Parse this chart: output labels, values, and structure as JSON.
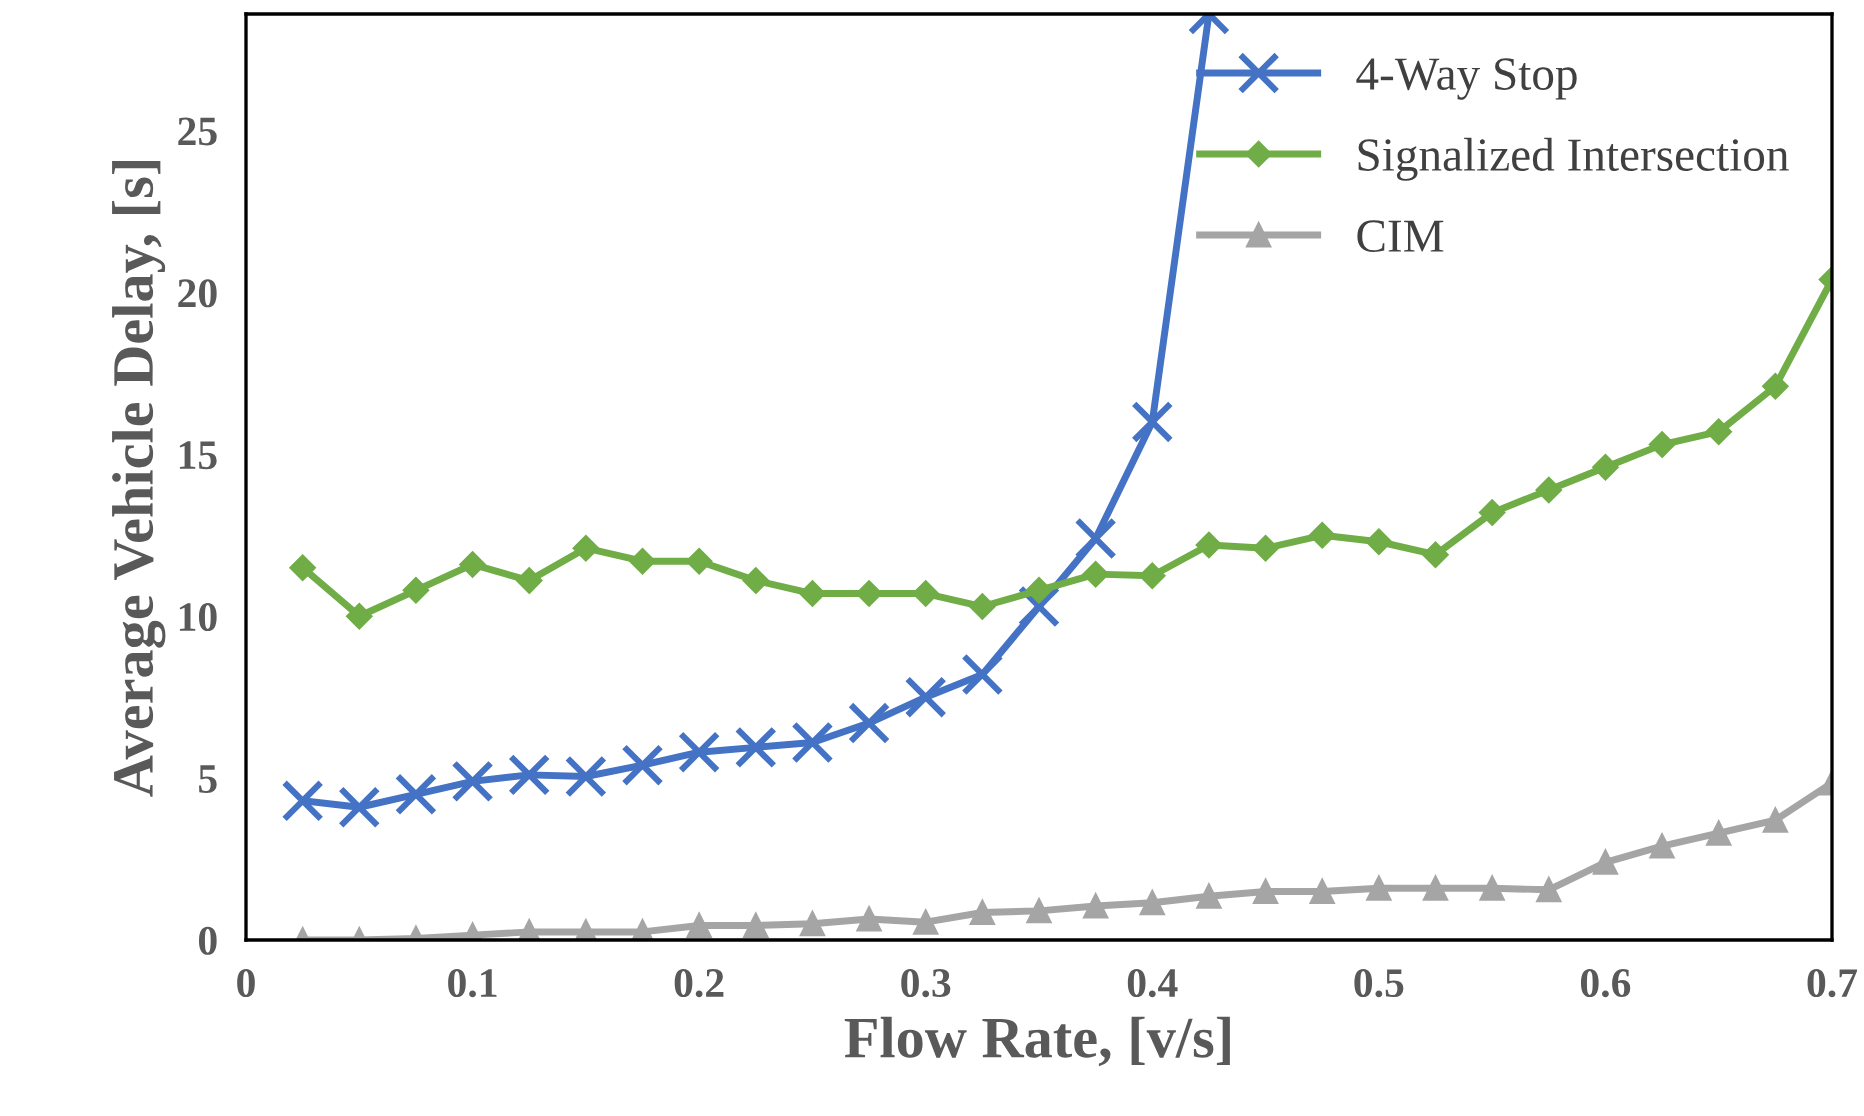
{
  "chart_data": {
    "type": "line",
    "xlabel": "Flow Rate, [v/s]",
    "ylabel": "Average Vehicle Delay, [s]",
    "x": [
      0.025,
      0.05,
      0.075,
      0.1,
      0.125,
      0.15,
      0.175,
      0.2,
      0.225,
      0.25,
      0.275,
      0.3,
      0.325,
      0.35,
      0.375,
      0.4,
      0.425,
      0.45,
      0.475,
      0.5,
      0.525,
      0.55,
      0.575,
      0.6,
      0.625,
      0.65,
      0.675,
      0.7
    ],
    "series": [
      {
        "name": "4-Way Stop",
        "color": "#4472c4",
        "marker": "cross",
        "x": [
          0.025,
          0.05,
          0.075,
          0.1,
          0.125,
          0.15,
          0.175,
          0.2,
          0.225,
          0.25,
          0.275,
          0.3,
          0.325,
          0.35,
          0.375,
          0.4,
          0.425
        ],
        "values": [
          4.3,
          4.1,
          4.5,
          4.9,
          5.1,
          5.05,
          5.4,
          5.8,
          5.95,
          6.1,
          6.7,
          7.5,
          8.2,
          10.3,
          12.4,
          16.0,
          28.6
        ]
      },
      {
        "name": "Signalized Intersection",
        "color": "#70ad47",
        "marker": "diamond",
        "values": [
          11.5,
          10.0,
          10.8,
          11.6,
          11.1,
          12.1,
          11.7,
          11.7,
          11.1,
          10.7,
          10.7,
          10.7,
          10.3,
          10.8,
          11.3,
          11.25,
          12.2,
          12.1,
          12.5,
          12.3,
          11.9,
          13.2,
          13.9,
          14.6,
          15.3,
          15.7,
          17.1,
          20.4
        ]
      },
      {
        "name": "CIM",
        "color": "#a5a5a5",
        "marker": "triangle",
        "values": [
          0.0,
          0.0,
          0.05,
          0.15,
          0.25,
          0.25,
          0.25,
          0.45,
          0.45,
          0.5,
          0.65,
          0.55,
          0.85,
          0.9,
          1.05,
          1.15,
          1.35,
          1.5,
          1.5,
          1.6,
          1.6,
          1.6,
          1.55,
          2.4,
          2.9,
          3.3,
          3.7,
          4.85
        ]
      }
    ],
    "xlim": [
      0,
      0.7
    ],
    "xticks": [
      0,
      0.1,
      0.2,
      0.3,
      0.4,
      0.5,
      0.6,
      0.7
    ],
    "ylim": [
      0,
      28.6
    ],
    "yticks": [
      0,
      5,
      10,
      15,
      20,
      25
    ],
    "grid": false,
    "legend": "top right",
    "line_style": "solid"
  }
}
